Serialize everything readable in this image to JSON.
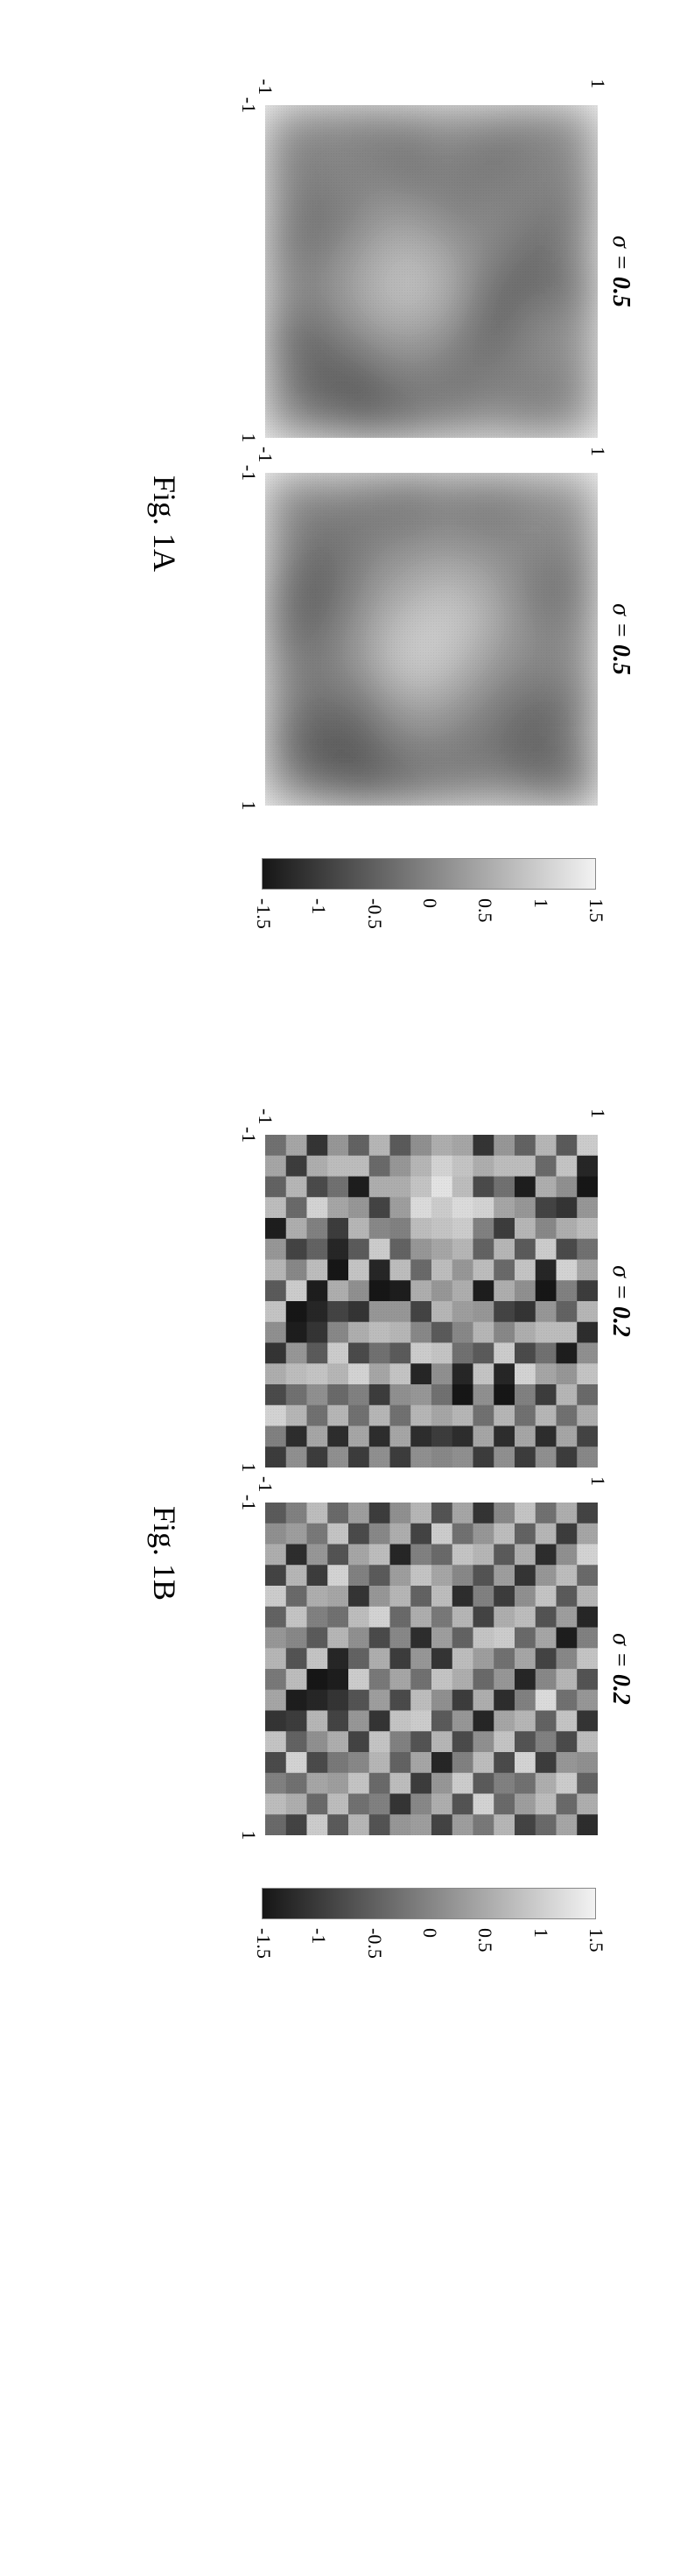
{
  "figA": {
    "label": "Fig. 1A",
    "panels": [
      {
        "title_sigma": "σ",
        "title_val": "0.5",
        "xlim": [
          -1,
          1
        ],
        "ylim": [
          -1,
          1
        ]
      },
      {
        "title_sigma": "σ",
        "title_val": "0.5",
        "xlim": [
          -1,
          1
        ],
        "ylim": [
          -1,
          1
        ]
      }
    ],
    "colorbar": {
      "min": -1.5,
      "max": 1.5,
      "ticks": [
        1.5,
        1,
        0.5,
        0,
        -0.5,
        -1,
        -1.5
      ],
      "top_color": "#f2f2f2",
      "bottom_color": "#161616"
    },
    "heatmap_type": "smooth",
    "grid": [
      [
        0.1,
        0.0,
        -0.2,
        0.1,
        -0.3,
        0.2,
        0.0,
        0.1
      ],
      [
        -0.1,
        0.2,
        0.0,
        -0.4,
        -0.2,
        0.3,
        0.1,
        -0.1
      ],
      [
        0.0,
        -0.3,
        0.2,
        0.1,
        -0.5,
        -0.6,
        0.0,
        0.2
      ],
      [
        0.2,
        0.1,
        -0.1,
        0.4,
        0.6,
        0.2,
        -0.2,
        0.0
      ],
      [
        0.0,
        -0.2,
        0.3,
        0.8,
        1.0,
        0.5,
        0.1,
        -0.3
      ],
      [
        -0.1,
        0.1,
        0.2,
        0.5,
        0.7,
        0.3,
        -0.4,
        -0.6
      ],
      [
        0.0,
        0.2,
        -0.3,
        0.0,
        0.2,
        -0.2,
        -0.5,
        -0.2
      ],
      [
        0.1,
        -0.1,
        0.0,
        -0.2,
        0.1,
        -0.4,
        -0.1,
        0.0
      ]
    ],
    "grid2": [
      [
        0.2,
        0.0,
        -0.3,
        -0.1,
        0.1,
        -0.2,
        0.0,
        -0.4
      ],
      [
        0.1,
        0.3,
        -0.1,
        0.0,
        0.2,
        -0.3,
        -0.5,
        -0.2
      ],
      [
        -0.2,
        0.0,
        0.4,
        0.6,
        0.3,
        0.0,
        -0.2,
        0.1
      ],
      [
        0.0,
        0.2,
        0.7,
        1.1,
        0.9,
        0.4,
        0.0,
        -0.1
      ],
      [
        -0.3,
        0.1,
        0.5,
        0.9,
        1.2,
        0.6,
        0.1,
        -0.3
      ],
      [
        -0.1,
        0.0,
        0.2,
        0.4,
        0.5,
        -0.1,
        -0.4,
        -0.6
      ],
      [
        0.1,
        -0.2,
        -0.5,
        -0.3,
        0.0,
        -0.2,
        -0.7,
        -0.3
      ],
      [
        0.0,
        0.1,
        -0.2,
        -0.4,
        -0.1,
        0.0,
        -0.3,
        0.1
      ]
    ]
  },
  "figB": {
    "label": "Fig. 1B",
    "panels": [
      {
        "title_sigma": "σ",
        "title_val": "0.2",
        "xlim": [
          -1,
          1
        ],
        "ylim": [
          -1,
          1
        ]
      },
      {
        "title_sigma": "σ",
        "title_val": "0.2",
        "xlim": [
          -1,
          1
        ],
        "ylim": [
          -1,
          1
        ]
      }
    ],
    "colorbar": {
      "min": -1.5,
      "max": 1.5,
      "ticks": [
        1.5,
        1,
        0.5,
        0,
        -0.5,
        -1,
        -1.5
      ],
      "top_color": "#f2f2f2",
      "bottom_color": "#161616"
    },
    "heatmap_type": "coarse",
    "grid": [
      [
        1.0,
        -1.2,
        -1.4,
        0.3,
        0.8,
        -0.2,
        0.5,
        -0.9,
        0.7,
        -1.1,
        0.2,
        0.9,
        -0.3,
        0.6,
        -0.8,
        0.1
      ],
      [
        -0.5,
        0.9,
        0.2,
        -1.0,
        0.6,
        -0.7,
        1.1,
        0.0,
        -0.4,
        0.8,
        -1.3,
        0.3,
        0.7,
        -0.2,
        0.5,
        -0.9
      ],
      [
        0.7,
        -0.3,
        0.6,
        -0.8,
        0.1,
        1.0,
        -1.2,
        -1.4,
        0.3,
        0.8,
        -0.2,
        0.5,
        -0.9,
        0.7,
        -1.1,
        0.2
      ],
      [
        -0.4,
        0.8,
        -1.3,
        0.3,
        0.7,
        -0.5,
        0.9,
        0.2,
        -1.0,
        0.6,
        -0.7,
        1.1,
        0.0,
        -0.2,
        0.5,
        -0.9
      ],
      [
        0.3,
        0.8,
        -0.2,
        0.5,
        -0.9,
        0.7,
        -0.3,
        0.6,
        -0.8,
        0.1,
        1.0,
        -1.2,
        -1.4,
        0.7,
        -1.1,
        0.2
      ],
      [
        -1.0,
        0.6,
        -0.7,
        1.1,
        0.0,
        -0.4,
        0.8,
        -1.3,
        0.3,
        0.7,
        -0.5,
        0.9,
        0.2,
        -0.2,
        0.5,
        -0.9
      ],
      [
        0.5,
        0.9,
        0.8,
        1.2,
        1.0,
        0.7,
        0.3,
        0.6,
        0.4,
        0.1,
        -0.2,
        -1.2,
        -1.4,
        0.7,
        -1.1,
        0.2
      ],
      [
        0.6,
        1.1,
        1.3,
        1.0,
        0.9,
        0.5,
        0.8,
        0.3,
        0.7,
        -0.5,
        0.9,
        0.2,
        -0.2,
        0.5,
        -0.9,
        0.1
      ],
      [
        0.2,
        0.7,
        0.9,
        1.2,
        0.8,
        0.3,
        -0.3,
        0.6,
        -0.8,
        0.1,
        1.0,
        -1.2,
        0.3,
        0.7,
        -1.1,
        0.2
      ],
      [
        -0.5,
        0.3,
        0.6,
        0.4,
        0.0,
        -0.4,
        0.8,
        -1.3,
        0.3,
        0.7,
        -0.5,
        0.9,
        0.2,
        -0.2,
        0.5,
        -0.9
      ],
      [
        0.7,
        -0.3,
        0.6,
        -0.8,
        0.1,
        1.0,
        -1.2,
        -1.4,
        0.3,
        0.8,
        -0.2,
        0.5,
        -0.9,
        0.7,
        -1.1,
        0.2
      ],
      [
        -0.4,
        0.8,
        -1.3,
        0.3,
        0.7,
        -0.5,
        0.9,
        0.2,
        -1.0,
        0.6,
        -0.7,
        1.1,
        0.0,
        -0.2,
        0.5,
        -0.9
      ],
      [
        0.3,
        0.8,
        -0.2,
        0.5,
        -0.9,
        -1.2,
        -1.4,
        0.6,
        -0.8,
        0.1,
        1.0,
        0.7,
        -0.3,
        0.7,
        -1.1,
        0.2
      ],
      [
        -1.0,
        0.6,
        -0.7,
        1.1,
        0.0,
        -0.4,
        0.8,
        -1.3,
        -1.2,
        -1.0,
        -0.5,
        0.9,
        0.2,
        -0.2,
        0.5,
        -0.9
      ],
      [
        0.5,
        -0.9,
        0.7,
        -0.3,
        0.6,
        -0.8,
        0.1,
        1.0,
        -1.4,
        -1.3,
        0.3,
        0.8,
        -0.2,
        0.7,
        -1.1,
        0.2
      ],
      [
        -0.2,
        0.5,
        -0.4,
        0.8,
        -1.3,
        0.3,
        0.7,
        -0.5,
        0.9,
        0.2,
        -1.0,
        0.6,
        -0.7,
        1.1,
        0.0,
        -0.9
      ]
    ],
    "grid2": [
      [
        -0.8,
        0.5,
        1.1,
        -0.3,
        0.7,
        -1.2,
        0.0,
        0.9,
        -0.6,
        0.3,
        -1.0,
        0.8,
        0.2,
        -0.4,
        0.6,
        -1.1
      ],
      [
        0.6,
        -0.9,
        0.2,
        0.8,
        -0.5,
        0.4,
        -1.3,
        0.1,
        0.7,
        -0.2,
        0.9,
        -0.7,
        0.3,
        1.0,
        -0.3,
        0.5
      ],
      [
        -0.2,
        0.7,
        -1.1,
        0.3,
        0.9,
        -0.6,
        0.5,
        -0.8,
        0.1,
        1.2,
        -0.4,
        0.0,
        -0.9,
        0.6,
        0.8,
        -0.3
      ],
      [
        0.9,
        -0.4,
        0.6,
        -1.0,
        0.2,
        0.8,
        -0.3,
        0.5,
        -1.2,
        0.0,
        0.7,
        -0.6,
        1.1,
        -0.2,
        0.4,
        -0.8
      ],
      [
        0.1,
        0.8,
        -0.5,
        0.4,
        -0.9,
        0.6,
        1.0,
        -0.2,
        0.3,
        -1.1,
        0.5,
        0.9,
        -0.7,
        0.0,
        -0.3,
        0.7
      ],
      [
        -1.0,
        0.3,
        0.7,
        -0.6,
        0.0,
        -0.8,
        0.9,
        0.4,
        -0.3,
        0.6,
        -1.2,
        0.2,
        0.8,
        -0.5,
        1.1,
        -0.1
      ],
      [
        0.5,
        -0.2,
        0.9,
        0.1,
        -1.1,
        0.7,
        -0.4,
        0.8,
        0.6,
        -0.9,
        0.3,
        -0.7,
        0.0,
        1.0,
        -0.6,
        0.4
      ],
      [
        -0.6,
        1.0,
        -0.3,
        0.5,
        0.8,
        -0.1,
        0.4,
        -1.0,
        0.9,
        0.2,
        -0.5,
        0.7,
        -1.2,
        0.3,
        0.6,
        -0.8
      ],
      [
        0.7,
        -0.8,
        0.0,
        0.9,
        -0.4,
        0.6,
        -1.1,
        0.3,
        -0.2,
        0.8,
        1.0,
        -0.6,
        0.5,
        -0.9,
        0.1,
        0.4
      ],
      [
        0.2,
        0.6,
        -1.2,
        0.4,
        0.7,
        -0.3,
        0.1,
        -0.9,
        0.5,
        -0.7,
        0.9,
        0.0,
        -0.4,
        0.8,
        -1.0,
        0.3
      ],
      [
        -0.9,
        0.1,
        0.8,
        -0.5,
        0.3,
        1.1,
        -0.7,
        0.6,
        -0.1,
        0.4,
        -1.0,
        0.9,
        0.7,
        -0.3,
        0.0,
        -0.6
      ],
      [
        0.4,
        -0.7,
        0.5,
        0.0,
        -1.0,
        0.8,
        0.2,
        -0.4,
        1.0,
        -0.6,
        0.3,
        -0.8,
        0.1,
        0.9,
        -0.2,
        0.7
      ],
      [
        -0.3,
        0.9,
        -0.6,
        1.1,
        0.5,
        -0.2,
        0.7,
        -1.2,
        -1.3,
        -1.0,
        -0.8,
        0.6,
        -0.1,
        0.4,
        0.8,
        -0.5
      ],
      [
        0.8,
        -0.1,
        0.3,
        -0.9,
        0.6,
        0.0,
        -0.5,
        0.9,
        -1.4,
        -1.2,
        0.7,
        0.2,
        -0.7,
        0.5,
        -0.3,
        1.0
      ],
      [
        0.0,
        0.4,
        -1.1,
        0.7,
        -0.3,
        0.9,
        0.1,
        -0.6,
        0.8,
        -1.3,
        -0.9,
        -0.4,
        1.1,
        -0.2,
        0.6,
        -0.8
      ],
      [
        -0.5,
        0.2,
        0.6,
        -0.8,
        1.0,
        -0.4,
        0.3,
        0.7,
        -0.1,
        0.5,
        -1.0,
        0.9,
        -0.7,
        0.0,
        0.8,
        -0.3
      ]
    ]
  },
  "axis_ticks": {
    "y": [
      1,
      -1
    ],
    "x": [
      -1,
      1
    ]
  }
}
